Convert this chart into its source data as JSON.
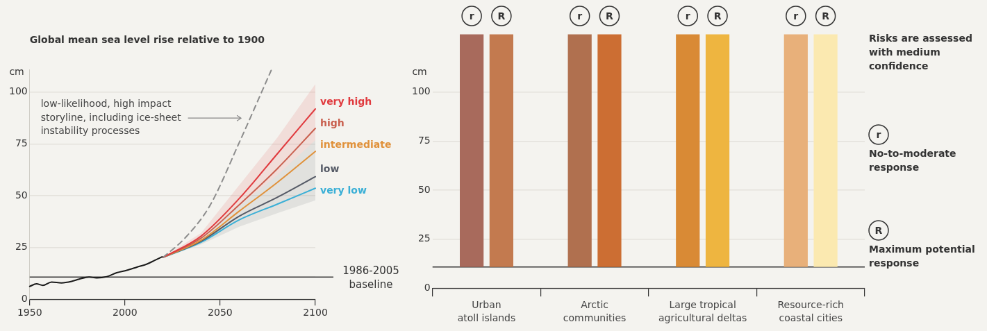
{
  "chart_data": [
    {
      "type": "line",
      "title": "Global mean sea level rise relative to 1900",
      "ylabel": "cm",
      "xlim": [
        1950,
        2100
      ],
      "xticks": [
        1950,
        2000,
        2050,
        2100
      ],
      "ylim": [
        0,
        111
      ],
      "yticks": [
        0,
        25,
        50,
        75,
        100
      ],
      "grid": "y",
      "legend": false,
      "marker": "none",
      "ref_lines": [
        {
          "axis": "y",
          "value": 10.7,
          "label": "1986-2005 baseline",
          "color": "#333333"
        }
      ],
      "annotations": [
        "low-likelihood, high impact storyline, including ice-sheet instability processes"
      ],
      "series": [
        {
          "color": "#1a1a1a",
          "x": [
            1950,
            1953.6,
            1956.9,
            1961.5,
            1966.7,
            1972,
            1976,
            1981.2,
            1985.2,
            1990.5,
            1995.7,
            2001,
            2006.3,
            2011.6,
            2015.5,
            2019.5
          ],
          "values": [
            6.2,
            7.4,
            6.7,
            8.3,
            7.9,
            8.6,
            9.7,
            10.7,
            10.3,
            10.9,
            12.8,
            14,
            15.5,
            17,
            18.7,
            20.5
          ]
        },
        {
          "color": "#8c8c8c",
          "line_style": "dashed",
          "x": [
            2020,
            2031.3,
            2044.5,
            2060.3,
            2076.8
          ],
          "values": [
            20.2,
            29.3,
            45,
            76.2,
            110.5
          ]
        },
        {
          "name": "very high",
          "color": "#e03a3e",
          "x": [
            2020,
            2040,
            2060,
            2080,
            2100
          ],
          "values": [
            20.2,
            30.5,
            48.6,
            70.2,
            91.9
          ],
          "lower": [
            20.2,
            29,
            45,
            60,
            76.8
          ],
          "upper": [
            20.2,
            32,
            55,
            78,
            103.9
          ]
        },
        {
          "name": "high",
          "color": "#c9604f",
          "x": [
            2020,
            2040,
            2060,
            2080,
            2100
          ],
          "values": [
            20.2,
            29.5,
            45.6,
            63,
            82.5
          ]
        },
        {
          "name": "intermediate",
          "color": "#e0913a",
          "x": [
            2020,
            2040,
            2060,
            2080,
            2100
          ],
          "values": [
            20.2,
            28.5,
            42.5,
            56.4,
            71.4
          ]
        },
        {
          "name": "low",
          "color": "#555a66",
          "x": [
            2020,
            2040,
            2060,
            2080,
            2100
          ],
          "values": [
            20.2,
            28,
            40.1,
            49.2,
            59.2
          ],
          "lower": [
            20.2,
            26.5,
            35,
            41.5,
            47.7
          ],
          "upper": [
            20.2,
            29,
            45,
            60,
            76.8
          ]
        },
        {
          "name": "very low",
          "color": "#3aafd6",
          "x": [
            2020,
            2040,
            2060,
            2080,
            2100
          ],
          "values": [
            20.2,
            27.5,
            38.3,
            45.9,
            53.6
          ]
        }
      ]
    },
    {
      "type": "bar",
      "ylabel": "cm",
      "categories": [
        "Urban\natoll islands",
        "Arctic\ncommunities",
        "Large tropical\nagricultural deltas",
        "Resource-rich\ncoastal cities"
      ],
      "ylim": [
        0,
        130
      ],
      "yticks": [
        0,
        25,
        50,
        75,
        100
      ],
      "grid": "y",
      "legend": false,
      "ref_lines": [
        {
          "axis": "y",
          "value": 10.8,
          "color": "#333333"
        }
      ],
      "annotations": [
        "Risks are assessed with medium confidence",
        "No-to-moderate response",
        "Maximum potential response"
      ],
      "series": [
        {
          "name": "r",
          "colors": [
            "#a86a5c",
            "#b0704f",
            "#d98a35",
            "#e8b07a"
          ],
          "base": [
            10.8,
            10.8,
            10.8,
            10.8
          ],
          "values": [
            118.7,
            118.7,
            118.7,
            118.7
          ]
        },
        {
          "name": "R",
          "colors": [
            "#c37a4f",
            "#cc6e33",
            "#eeb540",
            "#fbe9b0"
          ],
          "base": [
            10.8,
            10.8,
            10.8,
            10.8
          ],
          "values": [
            118.7,
            118.7,
            118.7,
            118.7
          ]
        }
      ]
    }
  ]
}
